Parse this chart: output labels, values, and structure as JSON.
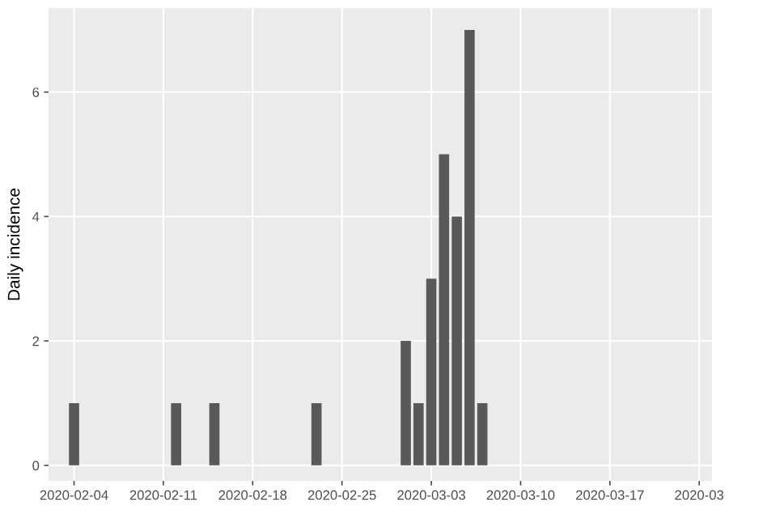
{
  "chart_data": {
    "type": "bar",
    "ylabel": "Daily incidence",
    "x": [
      "2020-02-04",
      "2020-02-12",
      "2020-02-15",
      "2020-02-23",
      "2020-03-01",
      "2020-03-02",
      "2020-03-03",
      "2020-03-04",
      "2020-03-05",
      "2020-03-06",
      "2020-03-07"
    ],
    "values": [
      1,
      1,
      1,
      1,
      2,
      1,
      3,
      5,
      4,
      7,
      1
    ],
    "color": "#595959",
    "xlim": [
      "2020-02-02",
      "2020-03-25"
    ],
    "xticks": [
      {
        "value": "2020-02-04",
        "label": "2020-02-04"
      },
      {
        "value": "2020-02-11",
        "label": "2020-02-11"
      },
      {
        "value": "2020-02-18",
        "label": "2020-02-18"
      },
      {
        "value": "2020-02-25",
        "label": "2020-02-25"
      },
      {
        "value": "2020-03-03",
        "label": "2020-03-03"
      },
      {
        "value": "2020-03-10",
        "label": "2020-03-10"
      },
      {
        "value": "2020-03-17",
        "label": "2020-03-17"
      },
      {
        "value": "2020-03-24",
        "label": "2020-03"
      }
    ],
    "ylim": [
      -0.25,
      7.35
    ],
    "yticks": [
      0,
      2,
      4,
      6
    ],
    "grid": true
  }
}
